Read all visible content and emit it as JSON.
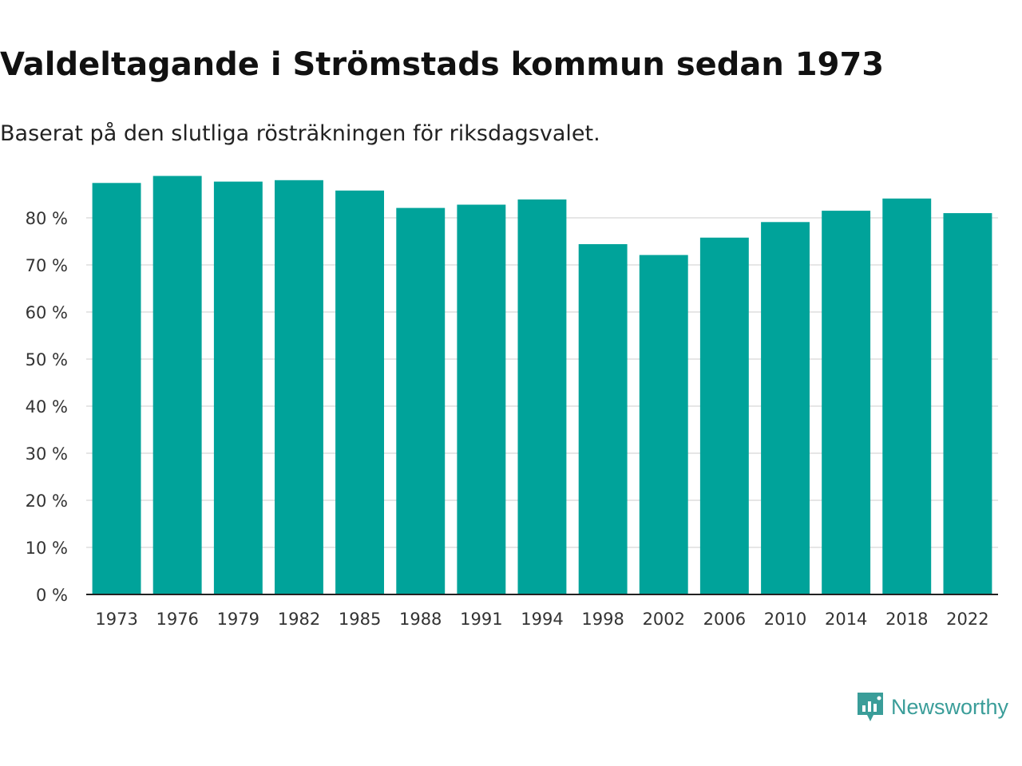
{
  "title": "Valdeltagande i Strömstads kommun sedan 1973",
  "subtitle": "Baserat på den slutliga rösträkningen för riksdagsvalet.",
  "brand": "Newsworthy",
  "colors": {
    "bar": "#00a39a",
    "grid": "#dddddd",
    "axis": "#222222",
    "brand": "#3a9d99"
  },
  "chart_data": {
    "type": "bar",
    "title": "Valdeltagande i Strömstads kommun sedan 1973",
    "subtitle": "Baserat på den slutliga rösträkningen för riksdagsvalet.",
    "xlabel": "",
    "ylabel": "",
    "categories": [
      "1973",
      "1976",
      "1979",
      "1982",
      "1985",
      "1988",
      "1991",
      "1994",
      "1998",
      "2002",
      "2006",
      "2010",
      "2014",
      "2018",
      "2022"
    ],
    "values": [
      87.4,
      88.9,
      87.7,
      88.0,
      85.8,
      82.1,
      82.8,
      83.9,
      74.4,
      72.1,
      75.8,
      79.1,
      81.5,
      84.1,
      81.0
    ],
    "yticks": [
      0,
      10,
      20,
      30,
      40,
      50,
      60,
      70,
      80
    ],
    "ytick_labels": [
      "0 %",
      "10 %",
      "20 %",
      "30 %",
      "40 %",
      "50 %",
      "60 %",
      "70 %",
      "80 %"
    ],
    "ylim": [
      0,
      89
    ],
    "grid": true
  }
}
